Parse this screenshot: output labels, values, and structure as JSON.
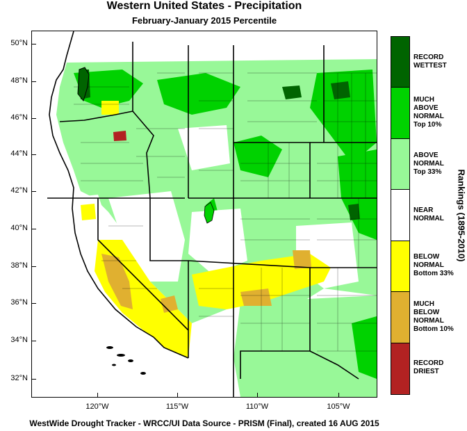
{
  "title": "Western United States - Precipitation",
  "subtitle": "February-January 2015 Percentile",
  "footer": "WestWide Drought Tracker - WRCC/UI  Data Source - PRISM (Final), created 16 AUG 2015",
  "lat_labels": [
    "50°N",
    "48°N",
    "46°N",
    "44°N",
    "42°N",
    "40°N",
    "38°N",
    "36°N",
    "34°N",
    "32°N"
  ],
  "lon_labels": [
    "120°W",
    "115°W",
    "110°W",
    "105°W"
  ],
  "legend": {
    "axis_title": "Rankings (1895-2010)",
    "items": [
      {
        "lines": [
          "RECORD",
          "WETTEST"
        ],
        "color": "#006400"
      },
      {
        "lines": [
          "MUCH",
          "ABOVE",
          "NORMAL",
          "Top 10%"
        ],
        "color": "#00d200"
      },
      {
        "lines": [
          "ABOVE",
          "NORMAL",
          "Top 33%"
        ],
        "color": "#98f898"
      },
      {
        "lines": [
          "NEAR",
          "NORMAL"
        ],
        "color": "#ffffff"
      },
      {
        "lines": [
          "BELOW",
          "NORMAL",
          "Bottom 33%"
        ],
        "color": "#ffff00"
      },
      {
        "lines": [
          "MUCH",
          "BELOW",
          "NORMAL",
          "Bottom 10%"
        ],
        "color": "#e0b030"
      },
      {
        "lines": [
          "RECORD",
          "DRIEST"
        ],
        "color": "#b22222"
      }
    ]
  },
  "colors": {
    "ocean": "#ffffff",
    "border": "#000000"
  }
}
